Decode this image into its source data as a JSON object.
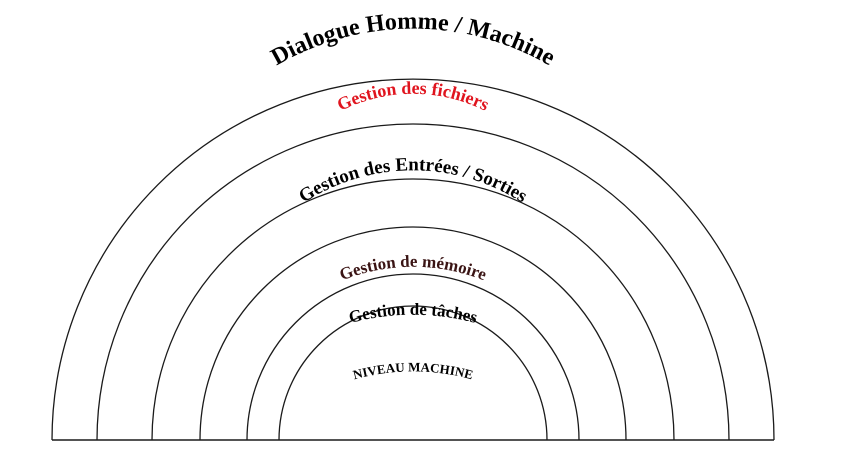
{
  "diagram": {
    "layers": [
      {
        "label": "Dialogue Homme / Machine",
        "color": "#000000"
      },
      {
        "label": "Gestion des fichiers",
        "color": "#e0141e"
      },
      {
        "label": "Gestion des Entrées / Sorties",
        "color": "#000000"
      },
      {
        "label": "Gestion de mémoire",
        "color": "#3a1414"
      },
      {
        "label": "Gestion de tâches",
        "color": "#000000"
      },
      {
        "label": "NIVEAU MACHINE",
        "color": "#000000"
      }
    ]
  }
}
